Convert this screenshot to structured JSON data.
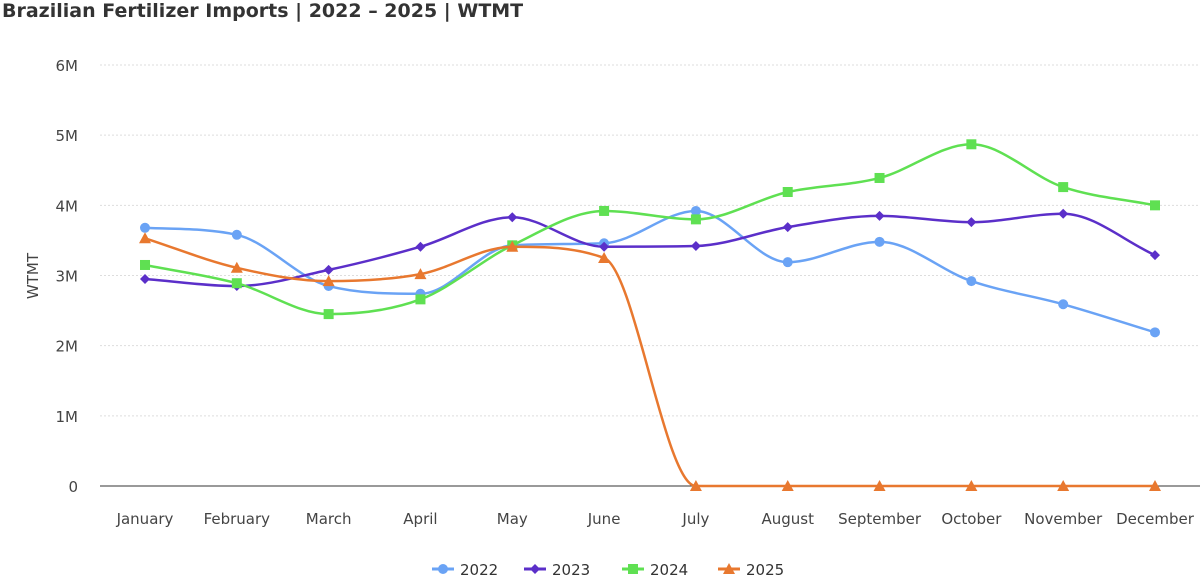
{
  "chart_data": {
    "type": "line",
    "title": "Brazilian Fertilizer Imports | 2022 – 2025 | WTMT",
    "xlabel": "",
    "ylabel": "WTMT",
    "ylim": [
      0,
      6000000
    ],
    "yticks": [
      {
        "v": 0,
        "label": "0"
      },
      {
        "v": 1000000,
        "label": "1M"
      },
      {
        "v": 2000000,
        "label": "2M"
      },
      {
        "v": 3000000,
        "label": "3M"
      },
      {
        "v": 4000000,
        "label": "4M"
      },
      {
        "v": 5000000,
        "label": "5M"
      },
      {
        "v": 6000000,
        "label": "6M"
      }
    ],
    "grid": true,
    "legend": "bottom",
    "categories": [
      "January",
      "February",
      "March",
      "April",
      "May",
      "June",
      "July",
      "August",
      "September",
      "October",
      "November",
      "December"
    ],
    "series": [
      {
        "name": "2022",
        "color": "#6aa3f5",
        "marker": "circle",
        "values": [
          3680000,
          3580000,
          2850000,
          2740000,
          3430000,
          3460000,
          3920000,
          3190000,
          3480000,
          2920000,
          2590000,
          2190000
        ]
      },
      {
        "name": "2023",
        "color": "#5b2fc9",
        "marker": "diamond",
        "values": [
          2950000,
          2850000,
          3080000,
          3410000,
          3830000,
          3410000,
          3420000,
          3690000,
          3850000,
          3760000,
          3880000,
          3290000
        ]
      },
      {
        "name": "2024",
        "color": "#5fe052",
        "marker": "square",
        "values": [
          3150000,
          2890000,
          2450000,
          2660000,
          3430000,
          3920000,
          3800000,
          4190000,
          4390000,
          4870000,
          4260000,
          4000000
        ]
      },
      {
        "name": "2025",
        "color": "#e8782f",
        "marker": "triangle",
        "values": [
          3530000,
          3110000,
          2920000,
          3020000,
          3410000,
          3250000,
          0,
          0,
          0,
          0,
          0,
          0
        ]
      }
    ]
  }
}
